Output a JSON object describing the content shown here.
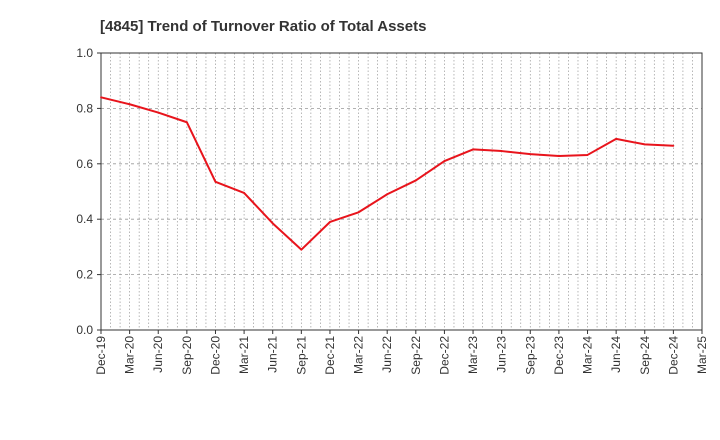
{
  "chart_data": {
    "type": "line",
    "title": "[4845]  Trend of Turnover Ratio of Total Assets",
    "xlabel": "",
    "ylabel": "",
    "ylim": [
      0,
      1.0
    ],
    "yticks": [
      "0.0",
      "0.2",
      "0.4",
      "0.6",
      "0.8",
      "1.0"
    ],
    "x_ticks": [
      "Dec-19",
      "Mar-20",
      "Jun-20",
      "Sep-20",
      "Dec-20",
      "Mar-21",
      "Jun-21",
      "Sep-21",
      "Dec-21",
      "Mar-22",
      "Jun-22",
      "Sep-22",
      "Dec-22",
      "Mar-23",
      "Jun-23",
      "Sep-23",
      "Dec-23",
      "Mar-24",
      "Jun-24",
      "Sep-24",
      "Dec-24",
      "Mar-25"
    ],
    "grid": "vertical dotted monthly, horizontal dashed",
    "series": [
      {
        "color": "#e8141c",
        "x": [
          "Dec-19",
          "Mar-20",
          "Jun-20",
          "Sep-20",
          "Dec-20",
          "Mar-21",
          "Jun-21",
          "Sep-21",
          "Dec-21",
          "Mar-22",
          "Jun-22",
          "Sep-22",
          "Dec-22",
          "Mar-23",
          "Jun-23",
          "Sep-23",
          "Dec-23",
          "Mar-24",
          "Jun-24",
          "Sep-24",
          "Dec-24"
        ],
        "values": [
          0.84,
          0.815,
          0.785,
          0.75,
          0.535,
          0.495,
          0.385,
          0.29,
          0.39,
          0.425,
          0.49,
          0.54,
          0.61,
          0.652,
          0.646,
          0.635,
          0.628,
          0.632,
          0.69,
          0.67,
          0.665
        ]
      }
    ]
  }
}
